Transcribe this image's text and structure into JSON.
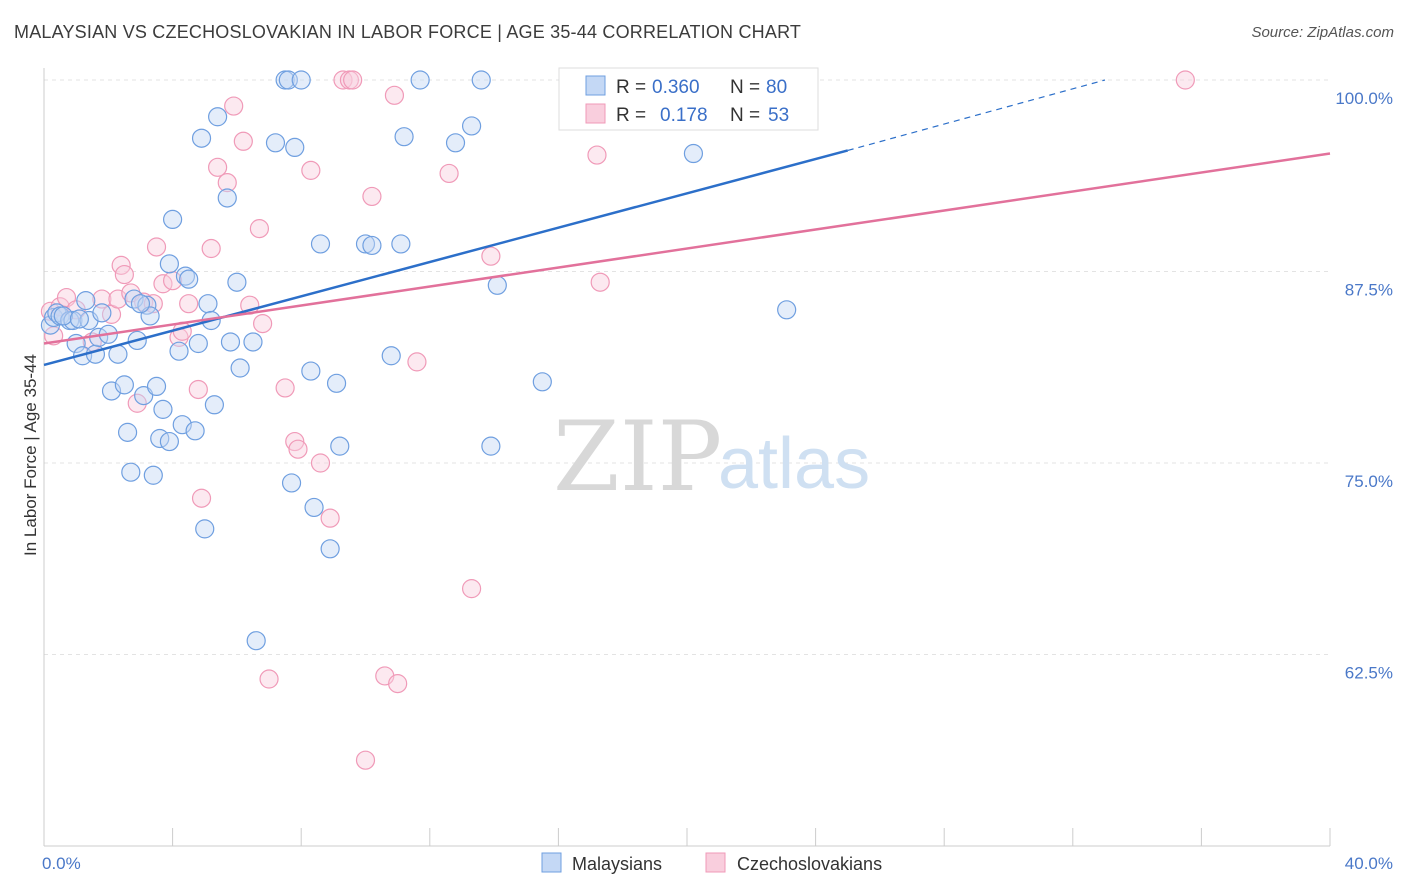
{
  "title": "MALAYSIAN VS CZECHOSLOVAKIAN IN LABOR FORCE | AGE 35-44 CORRELATION CHART",
  "source": "Source: ZipAtlas.com",
  "watermark": {
    "zip": "ZIP",
    "atlas": "atlas"
  },
  "legend_top": [
    {
      "r_label": "R =",
      "r_value": "0.360",
      "n_label": "N =",
      "n_value": "80"
    },
    {
      "r_label": "R =",
      "r_value": "0.178",
      "n_label": "N =",
      "n_value": "53"
    }
  ],
  "chart_data": {
    "type": "scatter",
    "xlabel": "",
    "ylabel": "In Labor Force | Age 35-44",
    "xlim": [
      0,
      40
    ],
    "ylim": [
      50,
      100
    ],
    "x_tick_labels": {
      "min": "0.0%",
      "max": "40.0%"
    },
    "y_ticks": [
      {
        "value": 100,
        "label": "100.0%"
      },
      {
        "value": 87.5,
        "label": "87.5%"
      },
      {
        "value": 75,
        "label": "75.0%"
      },
      {
        "value": 62.5,
        "label": "62.5%"
      }
    ],
    "grid": true,
    "legend_position": "bottom-center",
    "colors": {
      "malaysians": "#6f9fe0",
      "czechoslovakians": "#f09ab8",
      "malaysians_line": "#2c6fc9",
      "czechoslovakians_line": "#e2719b"
    },
    "series": [
      {
        "name": "Malaysians",
        "R": 0.36,
        "N": 80,
        "trend": {
          "x0": 0,
          "y0": 81.4,
          "x1": 25,
          "y1": 95.4,
          "dashed_to_x": 33,
          "dashed_to_y": 100
        },
        "points": [
          [
            0.2,
            84.0
          ],
          [
            0.3,
            84.5
          ],
          [
            0.4,
            84.8
          ],
          [
            0.5,
            84.6
          ],
          [
            0.8,
            84.3
          ],
          [
            0.9,
            84.3
          ],
          [
            1.0,
            82.8
          ],
          [
            1.2,
            82.0
          ],
          [
            1.3,
            85.6
          ],
          [
            1.4,
            84.3
          ],
          [
            1.6,
            82.1
          ],
          [
            1.7,
            83.2
          ],
          [
            1.8,
            84.8
          ],
          [
            2.0,
            83.4
          ],
          [
            2.1,
            79.7
          ],
          [
            2.3,
            82.1
          ],
          [
            2.5,
            80.1
          ],
          [
            2.6,
            77.0
          ],
          [
            2.7,
            74.4
          ],
          [
            2.8,
            85.7
          ],
          [
            2.9,
            83.0
          ],
          [
            3.1,
            79.4
          ],
          [
            3.2,
            85.3
          ],
          [
            3.3,
            84.6
          ],
          [
            3.4,
            74.2
          ],
          [
            3.5,
            80.0
          ],
          [
            3.6,
            76.6
          ],
          [
            3.7,
            78.5
          ],
          [
            3.9,
            76.4
          ],
          [
            3.9,
            88.0
          ],
          [
            4.0,
            90.9
          ],
          [
            4.2,
            82.3
          ],
          [
            4.3,
            77.5
          ],
          [
            4.4,
            87.2
          ],
          [
            4.5,
            87.0
          ],
          [
            4.7,
            77.1
          ],
          [
            4.8,
            82.8
          ],
          [
            4.9,
            96.2
          ],
          [
            5.0,
            70.7
          ],
          [
            5.1,
            85.4
          ],
          [
            5.2,
            84.3
          ],
          [
            5.3,
            78.8
          ],
          [
            5.4,
            97.6
          ],
          [
            5.7,
            92.3
          ],
          [
            5.8,
            82.9
          ],
          [
            6.0,
            86.8
          ],
          [
            6.1,
            81.2
          ],
          [
            6.5,
            82.9
          ],
          [
            6.6,
            63.4
          ],
          [
            7.5,
            100.0
          ],
          [
            7.6,
            100.0
          ],
          [
            7.2,
            95.9
          ],
          [
            7.7,
            73.7
          ],
          [
            7.8,
            95.6
          ],
          [
            8.0,
            100.0
          ],
          [
            8.3,
            81.0
          ],
          [
            8.4,
            72.1
          ],
          [
            8.6,
            89.3
          ],
          [
            8.9,
            69.4
          ],
          [
            9.1,
            80.2
          ],
          [
            9.2,
            76.1
          ],
          [
            10.0,
            89.3
          ],
          [
            10.2,
            89.2
          ],
          [
            10.8,
            82.0
          ],
          [
            11.1,
            89.3
          ],
          [
            11.2,
            96.3
          ],
          [
            11.7,
            100.0
          ],
          [
            12.8,
            95.9
          ],
          [
            13.3,
            97.0
          ],
          [
            13.6,
            100.0
          ],
          [
            13.9,
            76.1
          ],
          [
            14.1,
            86.6
          ],
          [
            15.5,
            80.3
          ],
          [
            16.3,
            100.0
          ],
          [
            16.5,
            100.0
          ],
          [
            20.2,
            95.2
          ],
          [
            23.1,
            85.0
          ],
          [
            0.6,
            84.6
          ],
          [
            1.1,
            84.4
          ],
          [
            3.0,
            85.4
          ]
        ]
      },
      {
        "name": "Czechoslovakians",
        "R": 0.178,
        "N": 53,
        "trend": {
          "x0": 0,
          "y0": 82.8,
          "x1": 40,
          "y1": 95.2
        },
        "points": [
          [
            0.2,
            84.9
          ],
          [
            0.3,
            83.3
          ],
          [
            0.5,
            85.2
          ],
          [
            0.7,
            85.8
          ],
          [
            1.0,
            85.0
          ],
          [
            1.5,
            82.9
          ],
          [
            1.8,
            85.7
          ],
          [
            2.1,
            84.7
          ],
          [
            2.3,
            85.7
          ],
          [
            2.4,
            87.9
          ],
          [
            2.5,
            87.3
          ],
          [
            2.7,
            86.1
          ],
          [
            2.9,
            78.9
          ],
          [
            3.1,
            85.5
          ],
          [
            3.4,
            85.4
          ],
          [
            3.5,
            89.1
          ],
          [
            3.7,
            86.7
          ],
          [
            4.0,
            86.9
          ],
          [
            4.2,
            83.2
          ],
          [
            4.3,
            83.6
          ],
          [
            4.5,
            85.4
          ],
          [
            4.8,
            79.8
          ],
          [
            4.9,
            72.7
          ],
          [
            5.2,
            89.0
          ],
          [
            5.4,
            94.3
          ],
          [
            5.7,
            93.3
          ],
          [
            5.9,
            98.3
          ],
          [
            6.2,
            96.0
          ],
          [
            6.4,
            85.3
          ],
          [
            6.7,
            90.3
          ],
          [
            6.8,
            84.1
          ],
          [
            7.0,
            60.9
          ],
          [
            7.5,
            79.9
          ],
          [
            7.8,
            76.4
          ],
          [
            7.9,
            75.9
          ],
          [
            8.3,
            94.1
          ],
          [
            8.6,
            75.0
          ],
          [
            8.9,
            71.4
          ],
          [
            9.3,
            100.0
          ],
          [
            9.5,
            100.0
          ],
          [
            9.6,
            100.0
          ],
          [
            10.0,
            55.6
          ],
          [
            10.2,
            92.4
          ],
          [
            10.6,
            61.1
          ],
          [
            10.9,
            99.0
          ],
          [
            11.0,
            60.6
          ],
          [
            11.6,
            81.6
          ],
          [
            12.6,
            93.9
          ],
          [
            13.3,
            66.8
          ],
          [
            13.9,
            88.5
          ],
          [
            17.2,
            95.1
          ],
          [
            17.3,
            86.8
          ],
          [
            35.5,
            100.0
          ]
        ]
      }
    ]
  }
}
